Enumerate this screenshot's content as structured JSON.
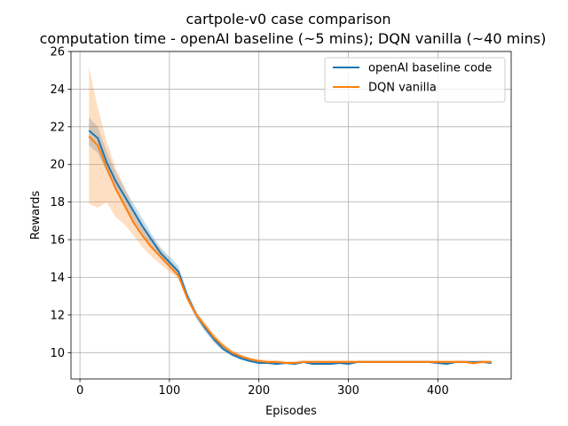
{
  "chart_data": {
    "type": "line",
    "title": "cartpole-v0 case comparison",
    "subtitle": "computation time - openAI baseline (~5 mins); DQN vanilla (~40 mins)",
    "xlabel": "Episodes",
    "ylabel": "Rewards",
    "xlim": [
      -10,
      482
    ],
    "ylim": [
      8.6,
      26
    ],
    "xticks": [
      0,
      100,
      200,
      300,
      400
    ],
    "yticks": [
      10,
      12,
      14,
      16,
      18,
      20,
      22,
      24,
      26
    ],
    "grid": true,
    "legend_position": "top-right",
    "x": [
      10,
      20,
      30,
      40,
      50,
      60,
      70,
      80,
      90,
      100,
      110,
      120,
      130,
      140,
      150,
      160,
      170,
      180,
      190,
      200,
      210,
      220,
      230,
      240,
      250,
      260,
      270,
      280,
      290,
      300,
      310,
      320,
      330,
      340,
      350,
      360,
      370,
      380,
      390,
      400,
      410,
      420,
      430,
      440,
      450,
      460
    ],
    "series": [
      {
        "name": "openAI baseline code",
        "color": "#1f77b4",
        "values": [
          21.8,
          21.4,
          20.1,
          19.1,
          18.3,
          17.5,
          16.7,
          16.0,
          15.3,
          14.8,
          14.3,
          13.0,
          12.0,
          11.3,
          10.7,
          10.2,
          9.9,
          9.7,
          9.55,
          9.45,
          9.45,
          9.4,
          9.45,
          9.4,
          9.5,
          9.4,
          9.4,
          9.4,
          9.45,
          9.4,
          9.5,
          9.5,
          9.5,
          9.5,
          9.5,
          9.5,
          9.5,
          9.5,
          9.5,
          9.45,
          9.4,
          9.5,
          9.5,
          9.5,
          9.5,
          9.45
        ],
        "band_lower": [
          21.0,
          20.6,
          19.6,
          18.7,
          17.9,
          17.0,
          16.3,
          15.6,
          15.0,
          14.5,
          14.0,
          12.8,
          11.8,
          11.1,
          10.5,
          10.1,
          9.8,
          9.6,
          9.5,
          9.4,
          9.4,
          9.35,
          9.4,
          9.35,
          9.45,
          9.35,
          9.35,
          9.35,
          9.4,
          9.35,
          9.45,
          9.45,
          9.45,
          9.45,
          9.45,
          9.45,
          9.45,
          9.45,
          9.45,
          9.4,
          9.35,
          9.45,
          9.45,
          9.45,
          9.45,
          9.4
        ],
        "band_upper": [
          22.5,
          22.0,
          20.7,
          19.6,
          18.7,
          17.9,
          17.1,
          16.3,
          15.6,
          15.1,
          14.6,
          13.2,
          12.2,
          11.5,
          10.9,
          10.4,
          10.0,
          9.8,
          9.65,
          9.55,
          9.5,
          9.5,
          9.5,
          9.5,
          9.55,
          9.5,
          9.5,
          9.5,
          9.5,
          9.5,
          9.55,
          9.55,
          9.55,
          9.55,
          9.55,
          9.55,
          9.55,
          9.55,
          9.55,
          9.5,
          9.5,
          9.55,
          9.55,
          9.55,
          9.55,
          9.5
        ]
      },
      {
        "name": "DQN vanilla",
        "color": "#ff7f0e",
        "values": [
          21.5,
          21.0,
          19.8,
          18.7,
          17.8,
          16.9,
          16.2,
          15.6,
          15.1,
          14.6,
          14.1,
          12.9,
          12.0,
          11.4,
          10.8,
          10.35,
          10.0,
          9.8,
          9.65,
          9.55,
          9.5,
          9.5,
          9.45,
          9.45,
          9.5,
          9.5,
          9.5,
          9.5,
          9.5,
          9.5,
          9.5,
          9.5,
          9.5,
          9.5,
          9.5,
          9.5,
          9.5,
          9.5,
          9.5,
          9.5,
          9.5,
          9.5,
          9.5,
          9.45,
          9.5,
          9.5
        ],
        "band_lower": [
          17.9,
          17.7,
          18.0,
          17.2,
          16.8,
          16.2,
          15.6,
          15.1,
          14.7,
          14.3,
          13.9,
          12.7,
          11.9,
          11.3,
          10.7,
          10.25,
          9.95,
          9.75,
          9.6,
          9.5,
          9.45,
          9.45,
          9.4,
          9.4,
          9.45,
          9.45,
          9.45,
          9.45,
          9.45,
          9.45,
          9.45,
          9.45,
          9.45,
          9.45,
          9.45,
          9.45,
          9.45,
          9.45,
          9.45,
          9.45,
          9.45,
          9.45,
          9.45,
          9.35,
          9.45,
          9.45
        ],
        "band_upper": [
          25.2,
          23.0,
          21.2,
          19.8,
          18.8,
          17.6,
          16.8,
          16.1,
          15.5,
          14.9,
          14.4,
          13.1,
          12.2,
          11.6,
          11.0,
          10.5,
          10.15,
          9.9,
          9.75,
          9.65,
          9.6,
          9.6,
          9.55,
          9.55,
          9.6,
          9.6,
          9.6,
          9.6,
          9.6,
          9.6,
          9.6,
          9.6,
          9.6,
          9.6,
          9.6,
          9.6,
          9.6,
          9.6,
          9.6,
          9.6,
          9.6,
          9.6,
          9.6,
          9.55,
          9.6,
          9.6
        ]
      }
    ]
  }
}
